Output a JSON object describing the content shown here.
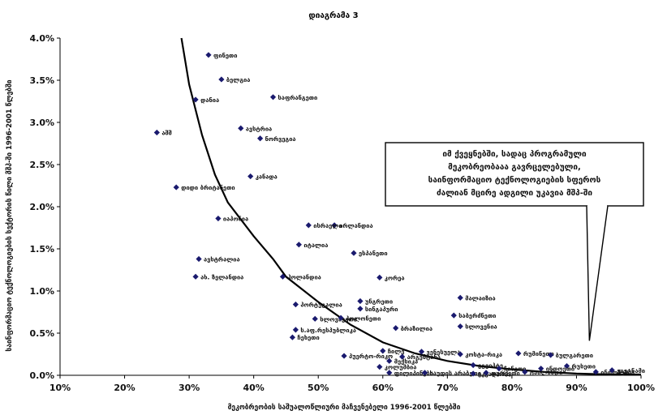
{
  "chart_data": {
    "type": "scatter",
    "title": "დიაგრამა 3",
    "xlabel": "მეკობრეობის საშუალოწლიური მაჩვენებელი 1996-2001 წლებში",
    "ylabel": "საინფორმაციო ტექნოლოგიების სექტორის წილი მშპ-ში 1996-2001 წლებში",
    "xlim": [
      0.1,
      1.0
    ],
    "ylim": [
      0.0,
      0.04
    ],
    "x_ticks": [
      "10%",
      "20%",
      "30%",
      "40%",
      "50%",
      "60%",
      "70%",
      "80%",
      "90%",
      "100%"
    ],
    "y_ticks": [
      "0.0%",
      "0.5%",
      "1.0%",
      "1.5%",
      "2.0%",
      "2.5%",
      "3.0%",
      "3.5%",
      "4.0%"
    ],
    "marker_color": "#1a1a6e",
    "curve_color": "#000000",
    "grid": false,
    "points": [
      {
        "label": "ფინეთი",
        "x": 0.33,
        "y": 0.038
      },
      {
        "label": "ბელგია",
        "x": 0.35,
        "y": 0.0351
      },
      {
        "label": "საფრანგეთი",
        "x": 0.43,
        "y": 0.033
      },
      {
        "label": "დანია",
        "x": 0.31,
        "y": 0.0327
      },
      {
        "label": "ავსტრია",
        "x": 0.38,
        "y": 0.0293
      },
      {
        "label": "აშშ",
        "x": 0.25,
        "y": 0.0288
      },
      {
        "label": "ნორვეგია",
        "x": 0.41,
        "y": 0.0281
      },
      {
        "label": "კანადა",
        "x": 0.395,
        "y": 0.0236
      },
      {
        "label": "დიდი ბრიტანეთი",
        "x": 0.28,
        "y": 0.0223
      },
      {
        "label": "იაპონია",
        "x": 0.345,
        "y": 0.0186
      },
      {
        "label": "ირლანდია",
        "x": 0.525,
        "y": 0.0178
      },
      {
        "label": "ისრაელი",
        "x": 0.485,
        "y": 0.0178
      },
      {
        "label": "იტალია",
        "x": 0.47,
        "y": 0.0155
      },
      {
        "label": "ესპანეთი",
        "x": 0.555,
        "y": 0.0145
      },
      {
        "label": "ავსტრალია",
        "x": 0.315,
        "y": 0.0138
      },
      {
        "label": "ახ. ზელანდია",
        "x": 0.31,
        "y": 0.0117
      },
      {
        "label": "ჰოლანდია",
        "x": 0.445,
        "y": 0.0117
      },
      {
        "label": "კორეა",
        "x": 0.595,
        "y": 0.0116
      },
      {
        "label": "მალაიზია",
        "x": 0.72,
        "y": 0.0092
      },
      {
        "label": "უნგრეთი",
        "x": 0.565,
        "y": 0.0088
      },
      {
        "label": "პორტუგალია",
        "x": 0.465,
        "y": 0.0084
      },
      {
        "label": "სინგაპური",
        "x": 0.565,
        "y": 0.0079
      },
      {
        "label": "საბერძნეთი",
        "x": 0.71,
        "y": 0.0071
      },
      {
        "label": "სლოვაკეთი",
        "x": 0.495,
        "y": 0.0067
      },
      {
        "label": "ბრაზილია",
        "x": 0.62,
        "y": 0.0056
      },
      {
        "label": "სლოვენია",
        "x": 0.72,
        "y": 0.0058
      },
      {
        "label": "ს.აფ.რესპუბლიკა",
        "x": 0.465,
        "y": 0.0054
      },
      {
        "label": "პოლონეთი",
        "x": 0.535,
        "y": 0.0068
      },
      {
        "label": "ჩეხეთი",
        "x": 0.46,
        "y": 0.0045
      },
      {
        "label": "პუერტო-რიკო",
        "x": 0.54,
        "y": 0.0023
      },
      {
        "label": "ჩილე",
        "x": 0.6,
        "y": 0.0029
      },
      {
        "label": "მექსიკა",
        "x": 0.61,
        "y": 0.0017
      },
      {
        "label": "არგენტინა",
        "x": 0.63,
        "y": 0.0022
      },
      {
        "label": "კოლუმბია",
        "x": 0.595,
        "y": 0.001
      },
      {
        "label": "ვენესუელა",
        "x": 0.66,
        "y": 0.0028
      },
      {
        "label": "კოსტა-რიკა",
        "x": 0.72,
        "y": 0.0025
      },
      {
        "label": "ფილიპინები",
        "x": 0.61,
        "y": 0.0003
      },
      {
        "label": "საუდის არაბეთი",
        "x": 0.665,
        "y": 0.0003
      },
      {
        "label": "ეგვიპტე",
        "x": 0.74,
        "y": 0.0012
      },
      {
        "label": "ეკვადორი",
        "x": 0.74,
        "y": 0.0002
      },
      {
        "label": "თურქეთი",
        "x": 0.76,
        "y": 0.0003
      },
      {
        "label": "რუმინეთი",
        "x": 0.81,
        "y": 0.0026
      },
      {
        "label": "ბულგარეთი",
        "x": 0.86,
        "y": 0.0024
      },
      {
        "label": "ჩინეთი",
        "x": 0.78,
        "y": 0.0008
      },
      {
        "label": "ტაილანდი",
        "x": 0.82,
        "y": 0.0004
      },
      {
        "label": "რუსეთი",
        "x": 0.885,
        "y": 0.0011
      },
      {
        "label": "ინდოეთი",
        "x": 0.845,
        "y": 0.0008
      },
      {
        "label": "ინდონეზია",
        "x": 0.93,
        "y": 0.0004
      },
      {
        "label": "ვიეტნამი",
        "x": 0.955,
        "y": 0.0006
      }
    ],
    "trend_curve": [
      [
        0.288,
        0.04
      ],
      [
        0.3,
        0.0345
      ],
      [
        0.32,
        0.0285
      ],
      [
        0.34,
        0.0238
      ],
      [
        0.36,
        0.0205
      ],
      [
        0.4,
        0.0165
      ],
      [
        0.43,
        0.0138
      ],
      [
        0.45,
        0.0117
      ],
      [
        0.5,
        0.0087
      ],
      [
        0.55,
        0.006
      ],
      [
        0.6,
        0.0039
      ],
      [
        0.65,
        0.0026
      ],
      [
        0.7,
        0.0017
      ],
      [
        0.75,
        0.0011
      ],
      [
        0.8,
        0.0007
      ],
      [
        0.85,
        0.0004
      ],
      [
        0.9,
        0.0002
      ],
      [
        0.95,
        0.0001
      ],
      [
        1.0,
        0.0001
      ]
    ],
    "annotation": {
      "lines": [
        "იმ ქვეყნებში, სადაც პროგრამული",
        "მეკობრეობააა გავრცელებული,",
        "საინფორმაციო ტექნოლოგიების სფეროს",
        "ძალიან მცირე ადგილი უკავია მშპ-ში"
      ],
      "points_to": [
        0.92,
        0.0041
      ]
    }
  }
}
